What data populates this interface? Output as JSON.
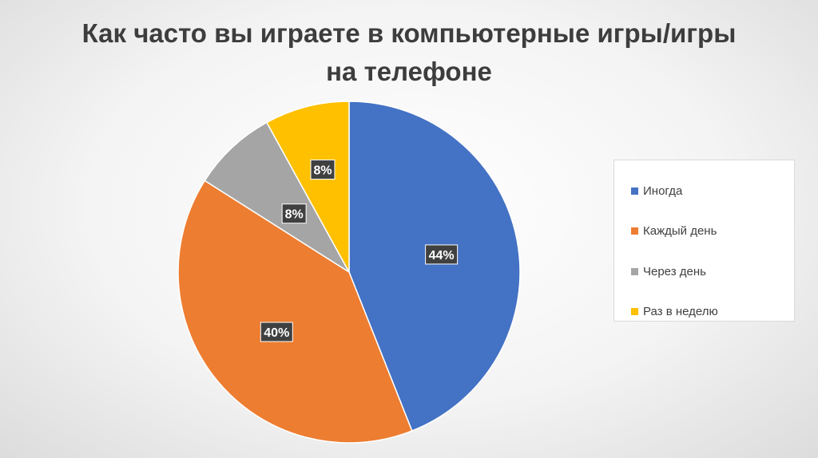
{
  "title": {
    "line1": "Как часто вы играете в компьютерные игры/игры",
    "line2": "на телефоне"
  },
  "chart_data": {
    "type": "pie",
    "title": "Как часто вы играете в компьютерные игры/игры на телефоне",
    "categories": [
      "Иногда",
      "Каждый день",
      "Через день",
      "Раз в неделю"
    ],
    "values": [
      44,
      40,
      8,
      8
    ],
    "labels": [
      "44%",
      "40%",
      "8%",
      "8%"
    ],
    "colors": [
      "#4472c4",
      "#ed7d31",
      "#a5a5a5",
      "#ffc000"
    ],
    "start_angle_deg": 0,
    "direction": "clockwise",
    "legend_position": "right"
  },
  "legend": {
    "items": [
      {
        "label": "Иногда",
        "color": "#4472c4"
      },
      {
        "label": "Каждый день",
        "color": "#ed7d31"
      },
      {
        "label": "Через день",
        "color": "#a5a5a5"
      },
      {
        "label": "Раз в неделю",
        "color": "#ffc000"
      }
    ]
  }
}
